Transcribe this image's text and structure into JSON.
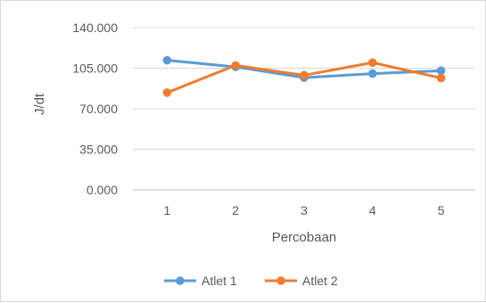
{
  "chart_data": {
    "type": "line",
    "categories": [
      "1",
      "2",
      "3",
      "4",
      "5"
    ],
    "series": [
      {
        "name": "Atlet 1",
        "values": [
          111800,
          106100,
          96800,
          100300,
          102800
        ],
        "color": "#5b9bd5"
      },
      {
        "name": "Atlet 2",
        "values": [
          83900,
          107400,
          98900,
          109800,
          96500
        ],
        "color": "#ed7d31"
      }
    ],
    "xlabel": "Percobaan",
    "ylabel": "J/dt",
    "ylim": [
      0,
      140000
    ],
    "yticks": [
      "0.000",
      "35.000",
      "70.000",
      "105.000",
      "140.000"
    ],
    "ytick_values": [
      0,
      35000,
      70000,
      105000,
      140000
    ],
    "grid": true,
    "legend_position": "bottom",
    "grid_color": "#d9d9d9"
  }
}
